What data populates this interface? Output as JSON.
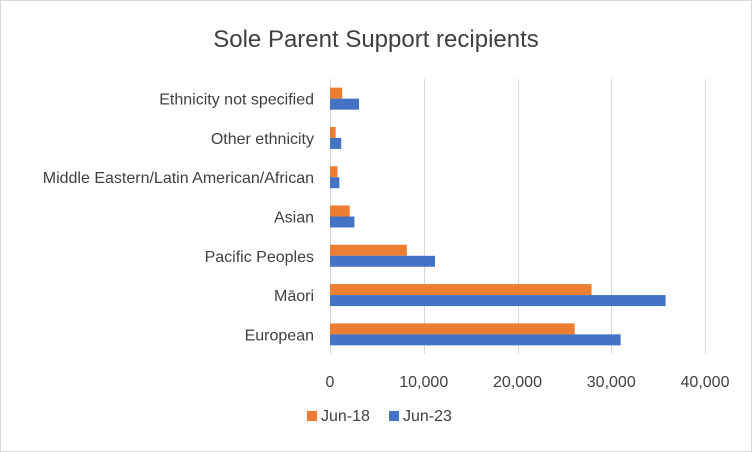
{
  "chart_data": {
    "type": "bar",
    "orientation": "horizontal",
    "title": "Sole Parent Support recipients",
    "categories": [
      "European",
      "Māori",
      "Pacific Peoples",
      "Asian",
      "Middle Eastern/Latin American/African",
      "Other ethnicity",
      "Ethnicity not specified"
    ],
    "series": [
      {
        "name": "Jun-18",
        "color": "#ED7D31",
        "values": [
          26100,
          27900,
          8200,
          2100,
          800,
          600,
          1300
        ]
      },
      {
        "name": "Jun-23",
        "color": "#4472C4",
        "values": [
          31000,
          35800,
          11200,
          2600,
          1000,
          1200,
          3100
        ]
      }
    ],
    "xlim": [
      0,
      40000
    ],
    "xticks": [
      0,
      10000,
      20000,
      30000,
      40000
    ],
    "xtick_labels": [
      "0",
      "10,000",
      "20,000",
      "30,000",
      "40,000"
    ],
    "xlabel": "",
    "ylabel": "",
    "grid": true,
    "legend_position": "bottom"
  }
}
